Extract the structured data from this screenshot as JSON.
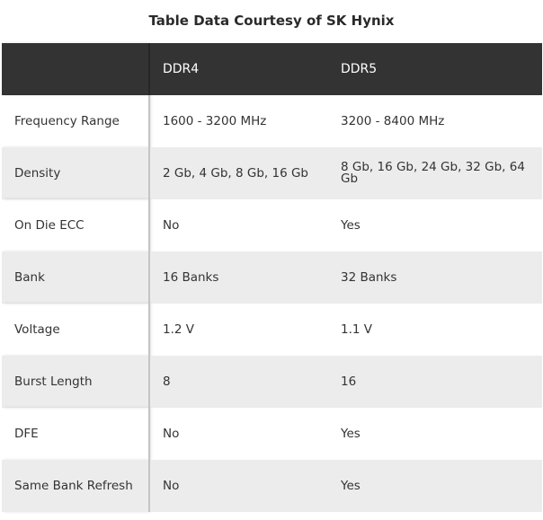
{
  "title": "Table Data Courtesy of SK Hynix",
  "columns": [
    "",
    "DDR4",
    "DDR5"
  ],
  "rows": [
    [
      "Frequency Range",
      "1600 - 3200 MHz",
      "3200 - 8400 MHz"
    ],
    [
      "Density",
      "2 Gb, 4 Gb, 8 Gb, 16 Gb",
      "8 Gb, 16 Gb, 24 Gb, 32 Gb, 64 Gb"
    ],
    [
      "On Die ECC",
      "No",
      "Yes"
    ],
    [
      "Bank",
      "16 Banks",
      "32 Banks"
    ],
    [
      "Voltage",
      "1.2 V",
      "1.1 V"
    ],
    [
      "Burst Length",
      "8",
      "16"
    ],
    [
      "DFE",
      "No",
      "Yes"
    ],
    [
      "Same Bank Refresh",
      "No",
      "Yes"
    ]
  ],
  "colors": {
    "header_bg": "#333333",
    "alt_row_bg": "#ececec"
  }
}
